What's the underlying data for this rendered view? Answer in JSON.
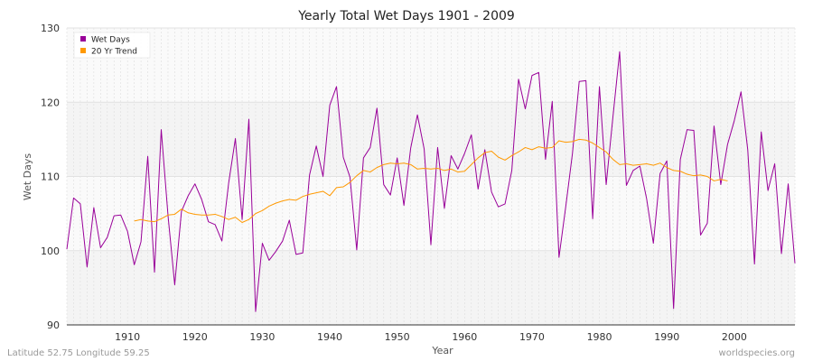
{
  "chart_data": {
    "type": "line",
    "title": "Yearly Total Wet Days 1901 - 2009",
    "xlabel": "Year",
    "ylabel": "Wet Days",
    "xlim": [
      1901,
      2009
    ],
    "ylim": [
      90,
      130
    ],
    "x_ticks": [
      1910,
      1920,
      1930,
      1940,
      1950,
      1960,
      1970,
      1980,
      1990,
      2000
    ],
    "y_ticks": [
      90,
      100,
      110,
      120,
      130
    ],
    "grid": true,
    "legend_position": "top-left",
    "series": [
      {
        "name": "Wet Days",
        "color": "#990099",
        "x": [
          1901,
          1902,
          1903,
          1904,
          1905,
          1906,
          1907,
          1908,
          1909,
          1910,
          1911,
          1912,
          1913,
          1914,
          1915,
          1916,
          1917,
          1918,
          1919,
          1920,
          1921,
          1922,
          1923,
          1924,
          1925,
          1926,
          1927,
          1928,
          1929,
          1930,
          1931,
          1932,
          1933,
          1934,
          1935,
          1936,
          1937,
          1938,
          1939,
          1940,
          1941,
          1942,
          1943,
          1944,
          1945,
          1946,
          1947,
          1948,
          1949,
          1950,
          1951,
          1952,
          1953,
          1954,
          1955,
          1956,
          1957,
          1958,
          1959,
          1960,
          1961,
          1962,
          1963,
          1964,
          1965,
          1966,
          1967,
          1968,
          1969,
          1970,
          1971,
          1972,
          1973,
          1974,
          1975,
          1976,
          1977,
          1978,
          1979,
          1980,
          1981,
          1982,
          1983,
          1984,
          1985,
          1986,
          1987,
          1988,
          1989,
          1990,
          1991,
          1992,
          1993,
          1994,
          1995,
          1996,
          1997,
          1998,
          1999,
          2000,
          2001,
          2002,
          2003,
          2004,
          2005,
          2006,
          2007,
          2008,
          2009
        ],
        "values": [
          100.2,
          107.1,
          106.3,
          97.8,
          105.8,
          100.4,
          101.8,
          104.7,
          104.8,
          102.6,
          98.1,
          101.2,
          112.7,
          97.1,
          116.3,
          104.8,
          95.4,
          105.3,
          107.4,
          109.0,
          106.9,
          103.9,
          103.5,
          101.3,
          109.1,
          115.1,
          104.2,
          117.7,
          91.8,
          101.0,
          98.7,
          99.9,
          101.3,
          104.1,
          99.5,
          99.7,
          110.2,
          114.1,
          110.0,
          119.6,
          122.1,
          112.6,
          109.9,
          100.1,
          112.5,
          113.9,
          119.2,
          108.9,
          107.5,
          112.5,
          106.1,
          113.8,
          118.3,
          113.7,
          100.8,
          113.9,
          105.7,
          112.8,
          111.0,
          113.1,
          115.6,
          108.3,
          113.6,
          107.9,
          105.9,
          106.3,
          110.8,
          123.1,
          119.1,
          123.6,
          124.0,
          112.3,
          120.1,
          99.1,
          105.9,
          113.1,
          122.8,
          122.9,
          104.3,
          122.1,
          108.9,
          118.0,
          126.8,
          108.8,
          110.8,
          111.4,
          107.0,
          101.0,
          110.4,
          112.1,
          92.2,
          112.3,
          116.3,
          116.2,
          102.1,
          103.7,
          116.8,
          108.9,
          114.3,
          117.5,
          121.4,
          113.6,
          98.2,
          116.0,
          108.1,
          111.7,
          99.6,
          109.0,
          98.3
        ]
      },
      {
        "name": "20 Yr Trend",
        "color": "#ff9900",
        "x": [
          1911,
          1912,
          1913,
          1914,
          1915,
          1916,
          1917,
          1918,
          1919,
          1920,
          1921,
          1922,
          1923,
          1924,
          1925,
          1926,
          1927,
          1928,
          1929,
          1930,
          1931,
          1932,
          1933,
          1934,
          1935,
          1936,
          1937,
          1938,
          1939,
          1940,
          1941,
          1942,
          1943,
          1944,
          1945,
          1946,
          1947,
          1948,
          1949,
          1950,
          1951,
          1952,
          1953,
          1954,
          1955,
          1956,
          1957,
          1958,
          1959,
          1960,
          1961,
          1962,
          1963,
          1964,
          1965,
          1966,
          1967,
          1968,
          1969,
          1970,
          1971,
          1972,
          1973,
          1974,
          1975,
          1976,
          1977,
          1978,
          1979,
          1980,
          1981,
          1982,
          1983,
          1984,
          1985,
          1986,
          1987,
          1988,
          1989,
          1990,
          1991,
          1992,
          1993,
          1994,
          1995,
          1996,
          1997,
          1998,
          1999
        ],
        "values": [
          104.0,
          104.2,
          104.0,
          103.9,
          104.3,
          104.8,
          104.9,
          105.6,
          105.1,
          104.9,
          104.8,
          104.8,
          104.9,
          104.6,
          104.2,
          104.5,
          103.8,
          104.2,
          105.0,
          105.4,
          106.0,
          106.4,
          106.7,
          106.9,
          106.8,
          107.3,
          107.6,
          107.8,
          108.0,
          107.4,
          108.5,
          108.6,
          109.2,
          110.1,
          110.8,
          110.6,
          111.2,
          111.6,
          111.8,
          111.7,
          111.8,
          111.6,
          111.0,
          111.1,
          111.0,
          111.1,
          110.8,
          111.0,
          110.6,
          110.7,
          111.6,
          112.5,
          113.2,
          113.4,
          112.6,
          112.2,
          112.8,
          113.3,
          113.9,
          113.6,
          114.0,
          113.8,
          113.9,
          114.8,
          114.6,
          114.7,
          115.0,
          114.9,
          114.5,
          113.9,
          113.3,
          112.3,
          111.6,
          111.7,
          111.5,
          111.6,
          111.7,
          111.5,
          111.8,
          111.2,
          110.8,
          110.7,
          110.3,
          110.1,
          110.2,
          110.0,
          109.4,
          109.6,
          109.4
        ]
      }
    ]
  },
  "footer": {
    "location": "Latitude 52.75 Longitude 59.25",
    "source": "worldspecies.org"
  }
}
